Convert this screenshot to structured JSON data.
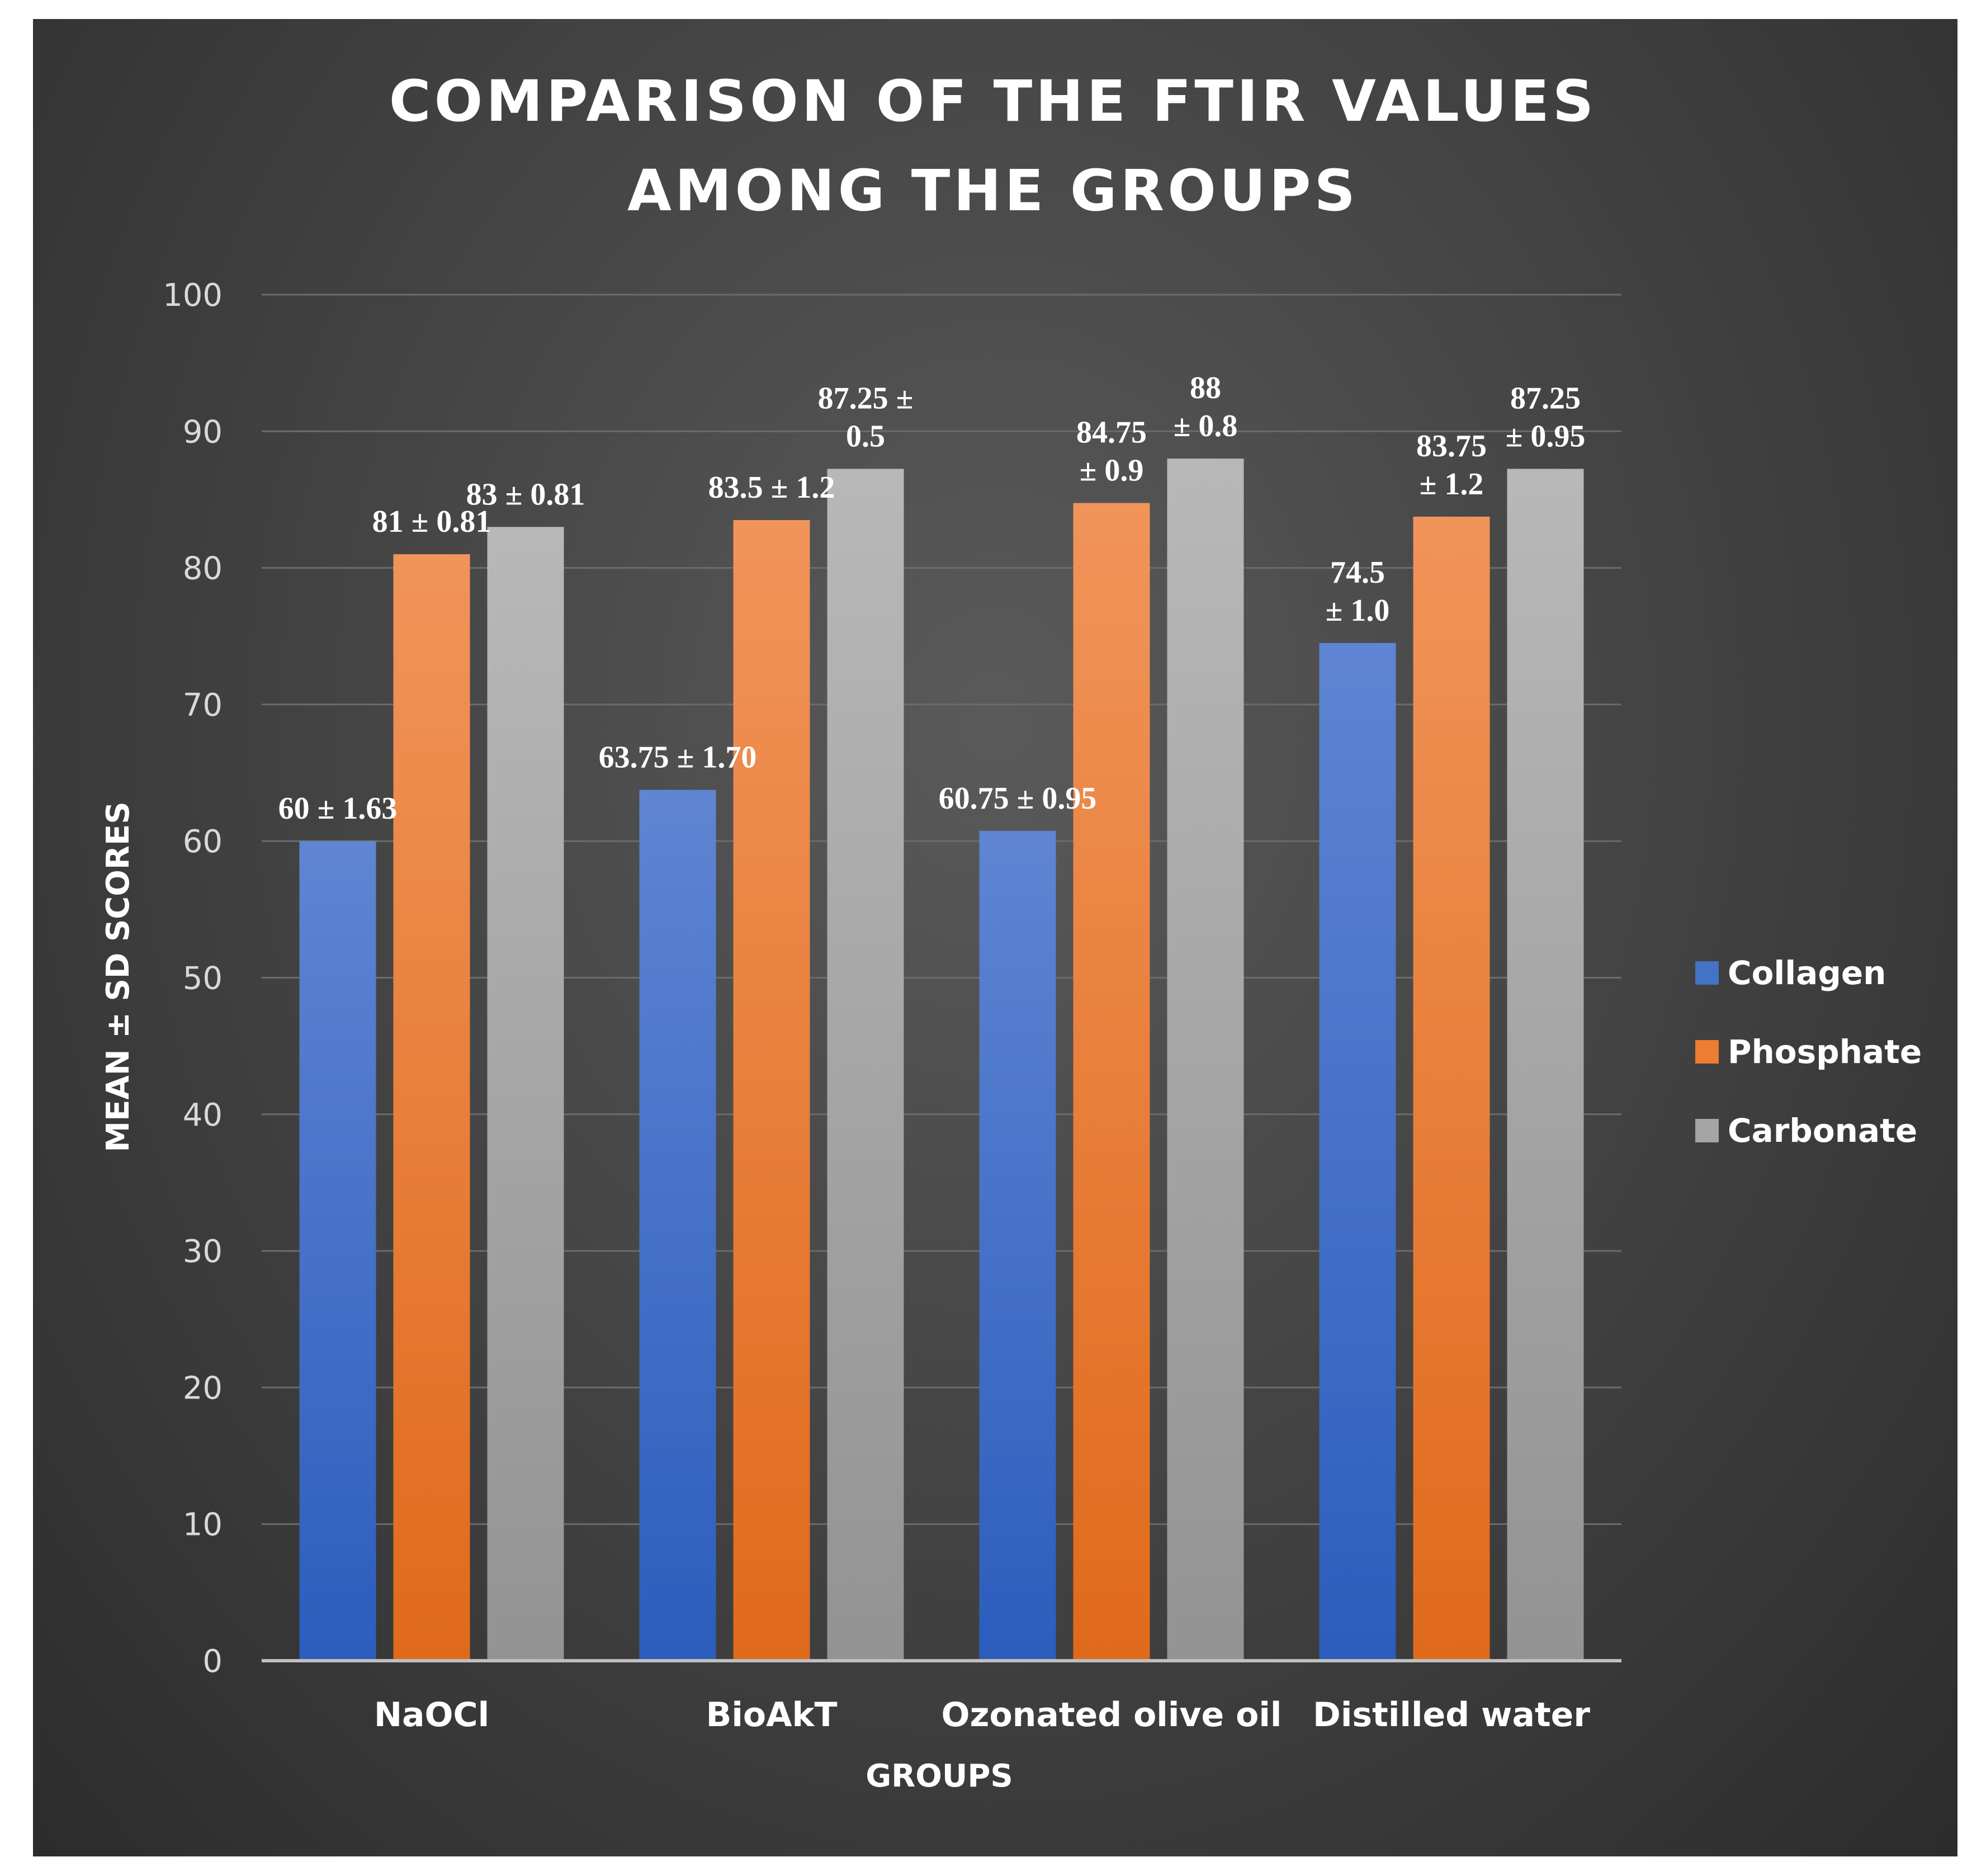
{
  "chart_data": {
    "type": "bar",
    "title_lines": [
      "COMPARISON OF THE FTIR VALUES",
      "AMONG THE GROUPS"
    ],
    "xlabel": "GROUPS",
    "ylabel": "MEAN ± SD SCORES",
    "ylim": [
      0,
      100
    ],
    "yticks": [
      0,
      10,
      20,
      30,
      40,
      50,
      60,
      70,
      80,
      90,
      100
    ],
    "grid": true,
    "legend_position": "right",
    "categories": [
      "NaOCl",
      "BioAkT",
      "Ozonated olive oil",
      "Distilled water"
    ],
    "series": [
      {
        "name": "Collagen",
        "color": "#4472c4",
        "values": [
          60,
          63.75,
          60.75,
          74.5
        ],
        "labels": [
          [
            "60 ± 1.63"
          ],
          [
            "63.75 ± 1.70"
          ],
          [
            "60.75 ± 0.95"
          ],
          [
            "74.5",
            "± 1.0"
          ]
        ]
      },
      {
        "name": "Phosphate",
        "color": "#ed7d31",
        "values": [
          81,
          83.5,
          84.75,
          83.75
        ],
        "labels": [
          [
            "81 ± 0.81"
          ],
          [
            "83.5 ± 1.2"
          ],
          [
            "84.75",
            "± 0.9"
          ],
          [
            "83.75",
            "± 1.2"
          ]
        ]
      },
      {
        "name": "Carbonate",
        "color": "#a5a5a5",
        "values": [
          83,
          87.25,
          88,
          87.25
        ],
        "labels": [
          [
            "83 ± 0.81"
          ],
          [
            "87.25 ±",
            "0.5"
          ],
          [
            "88",
            "± 0.8"
          ],
          [
            "87.25",
            "± 0.95"
          ]
        ]
      }
    ]
  }
}
